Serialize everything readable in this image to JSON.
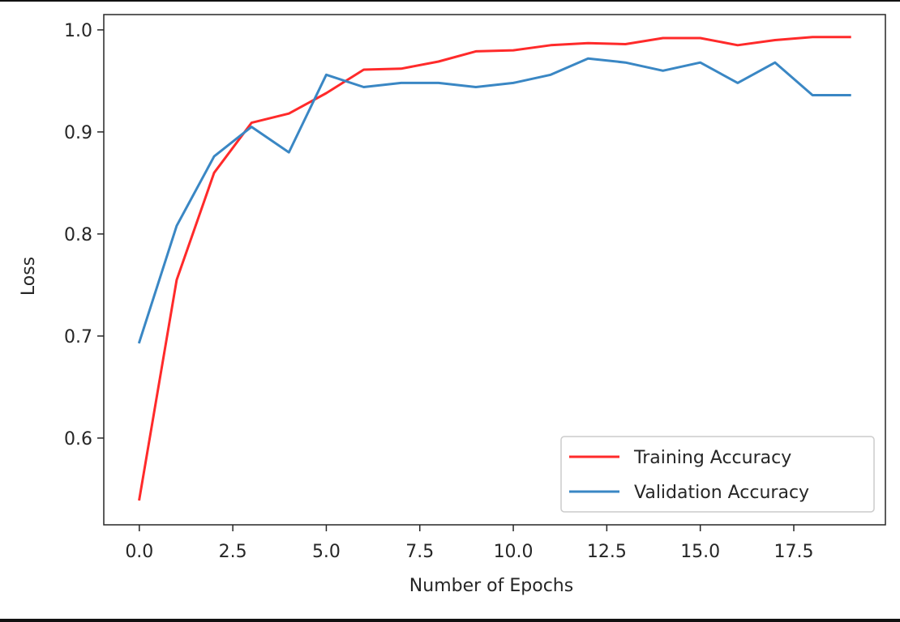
{
  "chart_data": {
    "type": "line",
    "title": "",
    "xlabel": "Number of Epochs",
    "ylabel": "Loss",
    "xlim": [
      -0.95,
      19.95
    ],
    "ylim": [
      0.515,
      1.015
    ],
    "xticks": [
      0.0,
      2.5,
      5.0,
      7.5,
      10.0,
      12.5,
      15.0,
      17.5
    ],
    "xtick_labels": [
      "0.0",
      "2.5",
      "5.0",
      "7.5",
      "10.0",
      "12.5",
      "15.0",
      "17.5"
    ],
    "yticks": [
      0.6,
      0.7,
      0.8,
      0.9,
      1.0
    ],
    "ytick_labels": [
      "0.6",
      "0.7",
      "0.8",
      "0.9",
      "1.0"
    ],
    "grid": false,
    "legend_position": "lower-right",
    "x": [
      0,
      1,
      2,
      3,
      4,
      5,
      6,
      7,
      8,
      9,
      10,
      11,
      12,
      13,
      14,
      15,
      16,
      17,
      18,
      19
    ],
    "series": [
      {
        "name": "Training Accuracy",
        "color": "#ff2a2a",
        "values": [
          0.54,
          0.755,
          0.86,
          0.909,
          0.918,
          0.938,
          0.961,
          0.962,
          0.969,
          0.979,
          0.98,
          0.985,
          0.987,
          0.986,
          0.992,
          0.992,
          0.985,
          0.99,
          0.993,
          0.993
        ]
      },
      {
        "name": "Validation Accuracy",
        "color": "#3a87c4",
        "values": [
          0.694,
          0.808,
          0.876,
          0.905,
          0.88,
          0.956,
          0.944,
          0.948,
          0.948,
          0.944,
          0.948,
          0.956,
          0.972,
          0.968,
          0.96,
          0.968,
          0.948,
          0.968,
          0.936,
          0.936
        ]
      }
    ]
  }
}
